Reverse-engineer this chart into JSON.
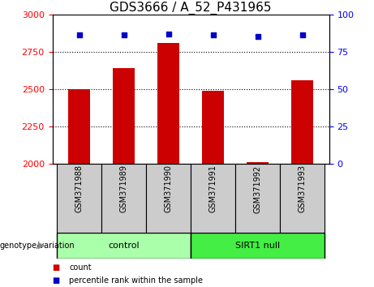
{
  "title": "GDS3666 / A_52_P431965",
  "samples": [
    "GSM371988",
    "GSM371989",
    "GSM371990",
    "GSM371991",
    "GSM371992",
    "GSM371993"
  ],
  "counts": [
    2500,
    2640,
    2810,
    2490,
    2010,
    2560
  ],
  "percentiles": [
    86,
    86,
    87,
    86,
    85,
    86
  ],
  "ylim_left": [
    2000,
    3000
  ],
  "ylim_right": [
    0,
    100
  ],
  "yticks_left": [
    2000,
    2250,
    2500,
    2750,
    3000
  ],
  "yticks_right": [
    0,
    25,
    50,
    75,
    100
  ],
  "bar_color": "#cc0000",
  "dot_color": "#0000cc",
  "bar_bottom": 2000,
  "groups": [
    {
      "label": "control",
      "start": 0,
      "end": 3,
      "color": "#aaffaa"
    },
    {
      "label": "SIRT1 null",
      "start": 3,
      "end": 6,
      "color": "#44ee44"
    }
  ],
  "genotype_label": "genotype/variation",
  "legend_count_label": "count",
  "legend_percentile_label": "percentile rank within the sample",
  "plot_bg_color": "#ffffff",
  "sample_header_color": "#cccccc",
  "title_fontsize": 11,
  "tick_fontsize": 8,
  "sample_fontsize": 7
}
